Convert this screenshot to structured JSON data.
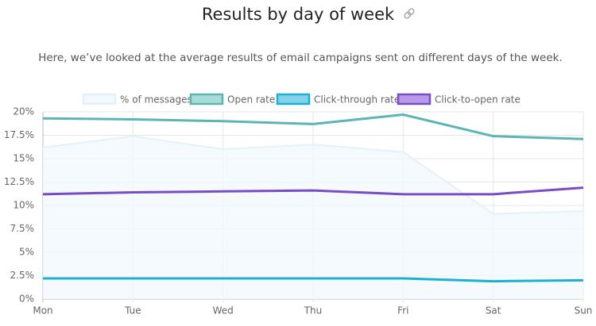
{
  "chart_data": {
    "type": "line",
    "title": "Results by day of week",
    "subtitle": "Here, we’ve looked at the average results of email campaigns sent on different days of the week.",
    "categories": [
      "Mon",
      "Tue",
      "Wed",
      "Thu",
      "Fri",
      "Sat",
      "Sun"
    ],
    "ylim": [
      0,
      20
    ],
    "yticks": [
      {
        "value": 0,
        "label": "0%"
      },
      {
        "value": 2.5,
        "label": "2.5%"
      },
      {
        "value": 5,
        "label": "5%"
      },
      {
        "value": 7.5,
        "label": "7.5%"
      },
      {
        "value": 10,
        "label": "10%"
      },
      {
        "value": 12.5,
        "label": "12.5%"
      },
      {
        "value": 15,
        "label": "15%"
      },
      {
        "value": 17.5,
        "label": "17.5%"
      },
      {
        "value": 20,
        "label": "20%"
      }
    ],
    "grid": true,
    "legend": "top",
    "series": [
      {
        "name": "% of messages",
        "color": "#e3f2f9",
        "fill": "#f1f9fd",
        "area": true,
        "values": [
          16.2,
          17.4,
          16.0,
          16.5,
          15.7,
          9.1,
          9.4
        ]
      },
      {
        "name": "Open rate",
        "color": "#5bb5b5",
        "fill": "#a9dbd7",
        "area": false,
        "values": [
          19.3,
          19.2,
          19.0,
          18.7,
          19.7,
          17.4,
          17.1
        ]
      },
      {
        "name": "Click-through rate",
        "color": "#1eb0d4",
        "fill": "#82d3ea",
        "area": false,
        "values": [
          2.2,
          2.2,
          2.2,
          2.2,
          2.2,
          1.9,
          2.0
        ]
      },
      {
        "name": "Click-to-open rate",
        "color": "#7a4cc6",
        "fill": "#b89ae8",
        "area": false,
        "values": [
          11.2,
          11.4,
          11.5,
          11.6,
          11.2,
          11.2,
          11.9
        ]
      }
    ]
  }
}
